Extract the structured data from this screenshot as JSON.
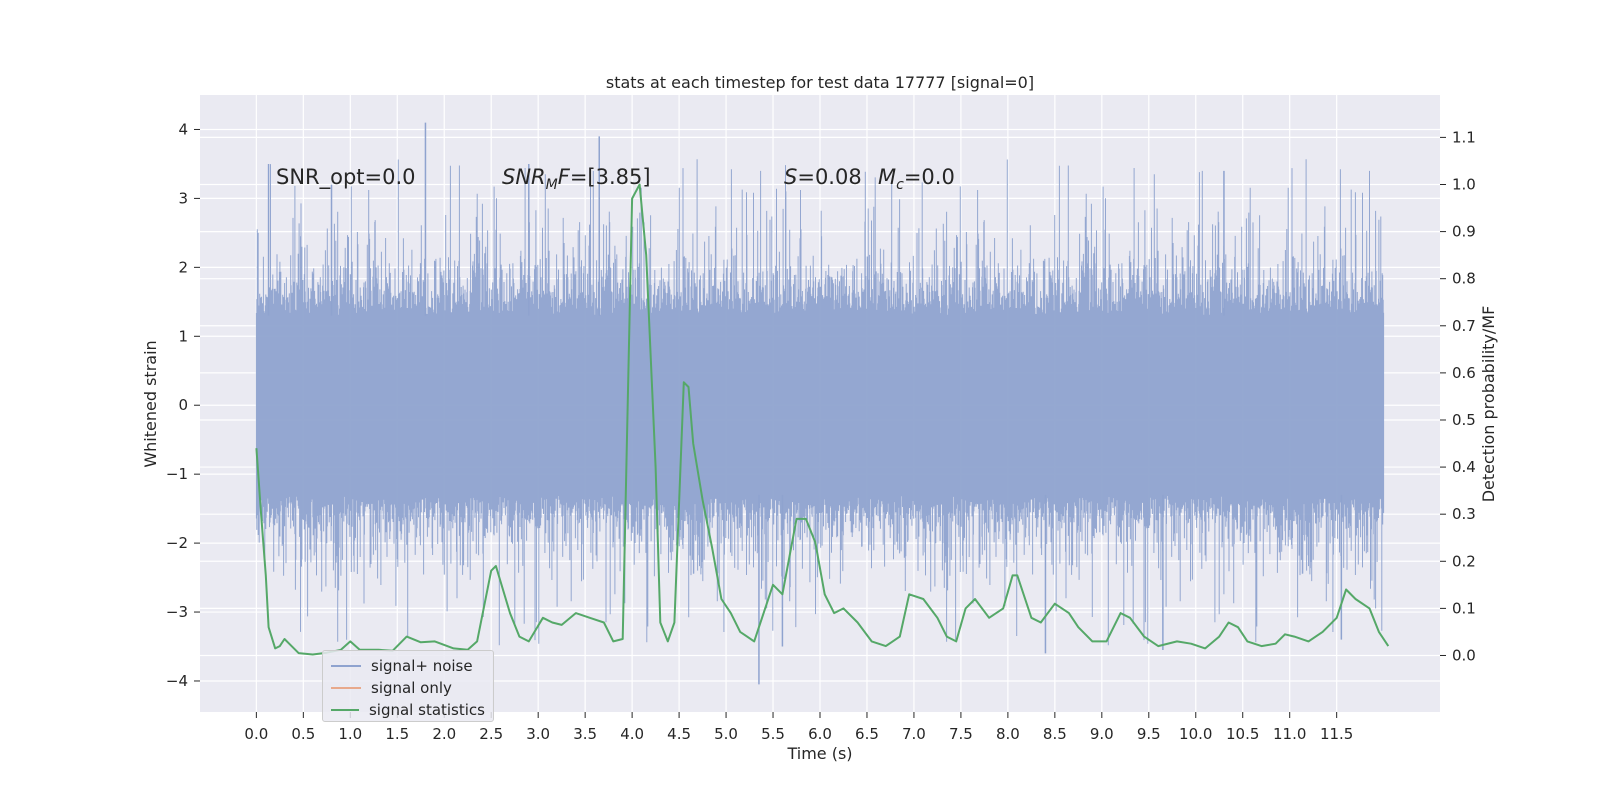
{
  "chart_data": {
    "type": "line",
    "title": "stats at each timestep for test data 17777 [signal=0]",
    "xlabel": "Time (s)",
    "ylabel": "Whitened strain",
    "y2label": "Detection probability/MF",
    "xlim": [
      -0.6,
      12.6
    ],
    "ylim": [
      -4.45,
      4.5
    ],
    "y2lim": [
      -0.12,
      1.19
    ],
    "xticks": [
      "0.0",
      "0.5",
      "1.0",
      "1.5",
      "2.0",
      "2.5",
      "3.0",
      "3.5",
      "4.0",
      "4.5",
      "5.0",
      "5.5",
      "6.0",
      "6.5",
      "7.0",
      "7.5",
      "8.0",
      "8.5",
      "9.0",
      "9.5",
      "10.0",
      "10.5",
      "11.0",
      "11.5"
    ],
    "yticks": [
      "4",
      "3",
      "2",
      "1",
      "0",
      "−1",
      "−2",
      "−3",
      "−4"
    ],
    "y2ticks": [
      "1.1",
      "1.0",
      "0.9",
      "0.8",
      "0.7",
      "0.6",
      "0.5",
      "0.4",
      "0.3",
      "0.2",
      "0.1",
      "0.0"
    ],
    "grid": true,
    "legend_position": "lower-left",
    "annotations": {
      "snr_opt": {
        "prefix": "SNR_opt=",
        "value": "0.0"
      },
      "snr_mf": {
        "sym": "SNR",
        "sub": "M",
        "tail": "F",
        "value": "=[3.85]"
      },
      "s": {
        "sym": "S",
        "value": "=0.08"
      },
      "mc": {
        "sym": "M",
        "sub": "c",
        "value": "=0.0"
      }
    },
    "series": [
      {
        "name": "signal+ noise",
        "color": "#8fa3cf",
        "x_range": [
          0,
          12
        ],
        "description": "dense whitened noise band approx. ±1.3 with spikes to about +4.1 / -4.1",
        "peak_points": [
          [
            0.13,
            3.5
          ],
          [
            0.8,
            3.2
          ],
          [
            1.8,
            4.1
          ],
          [
            2.9,
            3.5
          ],
          [
            3.65,
            3.9
          ],
          [
            5.35,
            -4.05
          ],
          [
            5.6,
            -3.5
          ],
          [
            8.4,
            -3.6
          ],
          [
            9.65,
            -3.55
          ],
          [
            10.3,
            3.4
          ],
          [
            11.55,
            -3.4
          ]
        ]
      },
      {
        "name": "signal only",
        "color": "#dd8452",
        "values_note": "flat at zero (signal=0)"
      },
      {
        "name": "signal statistics",
        "color": "#55a868",
        "axis": "right",
        "points": [
          [
            0.0,
            0.44
          ],
          [
            0.05,
            0.3
          ],
          [
            0.1,
            0.17
          ],
          [
            0.13,
            0.06
          ],
          [
            0.2,
            0.015
          ],
          [
            0.25,
            0.02
          ],
          [
            0.3,
            0.035
          ],
          [
            0.35,
            0.025
          ],
          [
            0.45,
            0.005
          ],
          [
            0.6,
            0.002
          ],
          [
            0.75,
            0.006
          ],
          [
            0.9,
            0.012
          ],
          [
            1.0,
            0.03
          ],
          [
            1.1,
            0.012
          ],
          [
            1.3,
            0.012
          ],
          [
            1.45,
            0.01
          ],
          [
            1.6,
            0.04
          ],
          [
            1.75,
            0.028
          ],
          [
            1.9,
            0.03
          ],
          [
            2.1,
            0.015
          ],
          [
            2.25,
            0.012
          ],
          [
            2.35,
            0.03
          ],
          [
            2.5,
            0.18
          ],
          [
            2.55,
            0.19
          ],
          [
            2.7,
            0.09
          ],
          [
            2.8,
            0.04
          ],
          [
            2.9,
            0.03
          ],
          [
            3.05,
            0.08
          ],
          [
            3.15,
            0.07
          ],
          [
            3.25,
            0.065
          ],
          [
            3.4,
            0.09
          ],
          [
            3.55,
            0.08
          ],
          [
            3.7,
            0.07
          ],
          [
            3.8,
            0.03
          ],
          [
            3.9,
            0.035
          ],
          [
            4.0,
            0.97
          ],
          [
            4.08,
            1.0
          ],
          [
            4.15,
            0.85
          ],
          [
            4.25,
            0.4
          ],
          [
            4.3,
            0.07
          ],
          [
            4.38,
            0.03
          ],
          [
            4.45,
            0.07
          ],
          [
            4.55,
            0.58
          ],
          [
            4.6,
            0.57
          ],
          [
            4.65,
            0.45
          ],
          [
            4.75,
            0.33
          ],
          [
            4.85,
            0.23
          ],
          [
            4.95,
            0.12
          ],
          [
            5.05,
            0.09
          ],
          [
            5.15,
            0.05
          ],
          [
            5.3,
            0.03
          ],
          [
            5.5,
            0.15
          ],
          [
            5.6,
            0.13
          ],
          [
            5.75,
            0.29
          ],
          [
            5.85,
            0.29
          ],
          [
            5.95,
            0.24
          ],
          [
            6.05,
            0.13
          ],
          [
            6.15,
            0.09
          ],
          [
            6.25,
            0.1
          ],
          [
            6.4,
            0.07
          ],
          [
            6.55,
            0.03
          ],
          [
            6.7,
            0.02
          ],
          [
            6.85,
            0.04
          ],
          [
            6.95,
            0.13
          ],
          [
            7.1,
            0.12
          ],
          [
            7.25,
            0.08
          ],
          [
            7.35,
            0.04
          ],
          [
            7.45,
            0.03
          ],
          [
            7.55,
            0.1
          ],
          [
            7.65,
            0.12
          ],
          [
            7.8,
            0.08
          ],
          [
            7.95,
            0.1
          ],
          [
            8.05,
            0.17
          ],
          [
            8.1,
            0.17
          ],
          [
            8.25,
            0.08
          ],
          [
            8.35,
            0.07
          ],
          [
            8.5,
            0.11
          ],
          [
            8.65,
            0.09
          ],
          [
            8.75,
            0.06
          ],
          [
            8.9,
            0.03
          ],
          [
            9.05,
            0.03
          ],
          [
            9.2,
            0.09
          ],
          [
            9.3,
            0.08
          ],
          [
            9.45,
            0.04
          ],
          [
            9.6,
            0.02
          ],
          [
            9.8,
            0.03
          ],
          [
            9.95,
            0.025
          ],
          [
            10.1,
            0.015
          ],
          [
            10.25,
            0.04
          ],
          [
            10.35,
            0.07
          ],
          [
            10.45,
            0.06
          ],
          [
            10.55,
            0.03
          ],
          [
            10.7,
            0.02
          ],
          [
            10.85,
            0.025
          ],
          [
            10.95,
            0.045
          ],
          [
            11.05,
            0.04
          ],
          [
            11.2,
            0.03
          ],
          [
            11.35,
            0.05
          ],
          [
            11.5,
            0.08
          ],
          [
            11.6,
            0.14
          ],
          [
            11.7,
            0.12
          ],
          [
            11.85,
            0.1
          ],
          [
            11.95,
            0.05
          ],
          [
            12.05,
            0.02
          ]
        ]
      }
    ]
  }
}
